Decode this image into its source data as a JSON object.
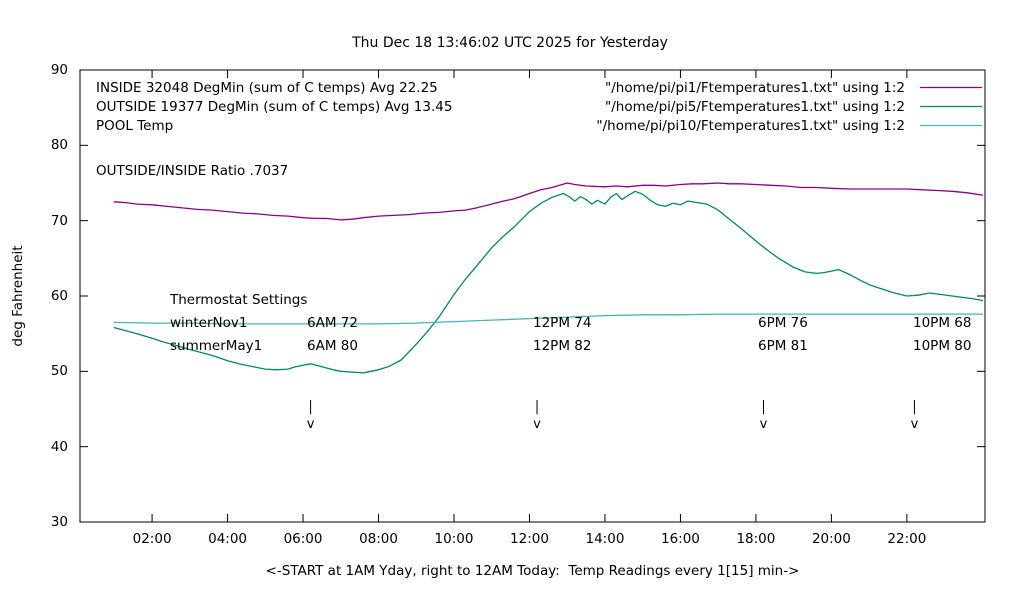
{
  "title": "Thu Dec 18 13:46:02 UTC 2025 for Yesterday",
  "ylabel": "deg Fahrenheit",
  "xlabel": "<-START at 1AM Yday, right to 12AM Today:  Temp Readings every 1[15] min->",
  "ratio_text": "OUTSIDE/INSIDE Ratio .7037",
  "legend": {
    "rows": [
      {
        "series": "INSIDE",
        "label": "INSIDE 32048 DegMin (sum of C temps) Avg 22.25",
        "file": "\"/home/pi/pi1/Ftemperatures1.txt\" using 1:2",
        "color": "#8b008b"
      },
      {
        "series": "OUTSIDE",
        "label": "OUTSIDE 19377 DegMin (sum of C temps) Avg 13.45",
        "file": "\"/home/pi/pi5/Ftemperatures1.txt\" using 1:2",
        "color": "#008b62"
      },
      {
        "series": "POOL",
        "label": "POOL Temp",
        "file": "\"/home/pi/pi10/Ftemperatures1.txt\" using 1:2",
        "color": "#45b4b8"
      }
    ]
  },
  "thermostat": {
    "heading": "Thermostat Settings",
    "rows": [
      {
        "label": "winterNov1",
        "cells": [
          "6AM 72",
          "12PM 74",
          "6PM 76",
          "10PM 68"
        ]
      },
      {
        "label": "summerMay1",
        "cells": [
          "6AM 80",
          "12PM 82",
          "6PM 81",
          "10PM 80"
        ]
      }
    ]
  },
  "chart_data": {
    "type": "line",
    "title": "Thu Dec 18 13:46:02 UTC 2025 for Yesterday",
    "xlabel": "<-START at 1AM Yday, right to 12AM Today:  Temp Readings every 1[15] min->",
    "ylabel": "deg Fahrenheit",
    "ylim": [
      30,
      90
    ],
    "x_domain_hours": [
      0.09,
      24.07
    ],
    "grid": false,
    "legend_position": "top-left-inside",
    "yticks": [
      30,
      40,
      50,
      60,
      70,
      80,
      90
    ],
    "xticks": [
      {
        "t": 2,
        "label": "02:00"
      },
      {
        "t": 4,
        "label": "04:00"
      },
      {
        "t": 6,
        "label": "06:00"
      },
      {
        "t": 8,
        "label": "08:00"
      },
      {
        "t": 10,
        "label": "10:00"
      },
      {
        "t": 12,
        "label": "12:00"
      },
      {
        "t": 14,
        "label": "14:00"
      },
      {
        "t": 16,
        "label": "16:00"
      },
      {
        "t": 18,
        "label": "18:00"
      },
      {
        "t": 20,
        "label": "20:00"
      },
      {
        "t": 22,
        "label": "22:00"
      }
    ],
    "markers": {
      "glyph": "v",
      "times_hours": [
        6.2,
        12.2,
        18.2,
        22.2
      ],
      "bar_top_f": 46.2,
      "bar_bottom_f": 44.3,
      "note": "thermostat setpoint change times"
    },
    "series": [
      {
        "name": "INSIDE",
        "color": "#8b008b",
        "points": [
          [
            1,
            72.5
          ],
          [
            1.3,
            72.4
          ],
          [
            1.6,
            72.2
          ],
          [
            2,
            72.1
          ],
          [
            2.4,
            71.9
          ],
          [
            2.8,
            71.7
          ],
          [
            3.2,
            71.5
          ],
          [
            3.6,
            71.4
          ],
          [
            4,
            71.2
          ],
          [
            4.4,
            71.0
          ],
          [
            4.8,
            70.9
          ],
          [
            5.2,
            70.7
          ],
          [
            5.6,
            70.6
          ],
          [
            6,
            70.4
          ],
          [
            6.3,
            70.3
          ],
          [
            6.6,
            70.3
          ],
          [
            7,
            70.1
          ],
          [
            7.3,
            70.2
          ],
          [
            7.6,
            70.4
          ],
          [
            8,
            70.6
          ],
          [
            8.4,
            70.7
          ],
          [
            8.8,
            70.8
          ],
          [
            9.2,
            71.0
          ],
          [
            9.6,
            71.1
          ],
          [
            10,
            71.3
          ],
          [
            10.3,
            71.4
          ],
          [
            10.6,
            71.7
          ],
          [
            11,
            72.2
          ],
          [
            11.3,
            72.6
          ],
          [
            11.6,
            72.9
          ],
          [
            12,
            73.6
          ],
          [
            12.3,
            74.1
          ],
          [
            12.6,
            74.4
          ],
          [
            13,
            75.0
          ],
          [
            13.2,
            74.8
          ],
          [
            13.5,
            74.6
          ],
          [
            14,
            74.5
          ],
          [
            14.3,
            74.6
          ],
          [
            14.6,
            74.5
          ],
          [
            15,
            74.7
          ],
          [
            15.3,
            74.7
          ],
          [
            15.6,
            74.6
          ],
          [
            16,
            74.8
          ],
          [
            16.3,
            74.9
          ],
          [
            16.6,
            74.9
          ],
          [
            17,
            75.0
          ],
          [
            17.3,
            74.9
          ],
          [
            17.6,
            74.9
          ],
          [
            18,
            74.8
          ],
          [
            18.4,
            74.7
          ],
          [
            18.8,
            74.6
          ],
          [
            19.2,
            74.4
          ],
          [
            19.6,
            74.4
          ],
          [
            20,
            74.3
          ],
          [
            20.5,
            74.2
          ],
          [
            21,
            74.2
          ],
          [
            21.5,
            74.2
          ],
          [
            22,
            74.2
          ],
          [
            22.4,
            74.1
          ],
          [
            22.8,
            74.0
          ],
          [
            23.2,
            73.9
          ],
          [
            23.6,
            73.7
          ],
          [
            24,
            73.4
          ]
        ]
      },
      {
        "name": "OUTSIDE",
        "color": "#008b62",
        "points": [
          [
            1,
            55.8
          ],
          [
            1.3,
            55.4
          ],
          [
            1.6,
            55.0
          ],
          [
            2,
            54.4
          ],
          [
            2.3,
            53.9
          ],
          [
            2.6,
            53.5
          ],
          [
            3,
            52.9
          ],
          [
            3.3,
            52.5
          ],
          [
            3.6,
            52.1
          ],
          [
            4,
            51.4
          ],
          [
            4.3,
            51.0
          ],
          [
            4.6,
            50.7
          ],
          [
            5,
            50.3
          ],
          [
            5.3,
            50.2
          ],
          [
            5.6,
            50.3
          ],
          [
            5.8,
            50.6
          ],
          [
            6,
            50.8
          ],
          [
            6.2,
            51.0
          ],
          [
            6.5,
            50.6
          ],
          [
            6.8,
            50.2
          ],
          [
            7,
            50.0
          ],
          [
            7.3,
            49.9
          ],
          [
            7.6,
            49.8
          ],
          [
            8,
            50.2
          ],
          [
            8.3,
            50.7
          ],
          [
            8.6,
            51.5
          ],
          [
            9,
            53.6
          ],
          [
            9.3,
            55.3
          ],
          [
            9.6,
            57.2
          ],
          [
            10,
            60.2
          ],
          [
            10.3,
            62.2
          ],
          [
            10.6,
            64.0
          ],
          [
            11,
            66.4
          ],
          [
            11.3,
            67.9
          ],
          [
            11.6,
            69.2
          ],
          [
            12,
            71.2
          ],
          [
            12.3,
            72.3
          ],
          [
            12.6,
            73.1
          ],
          [
            12.9,
            73.6
          ],
          [
            13.05,
            73.2
          ],
          [
            13.2,
            72.6
          ],
          [
            13.35,
            73.2
          ],
          [
            13.5,
            72.8
          ],
          [
            13.65,
            72.2
          ],
          [
            13.8,
            72.7
          ],
          [
            14,
            72.2
          ],
          [
            14.15,
            73.1
          ],
          [
            14.3,
            73.6
          ],
          [
            14.45,
            72.8
          ],
          [
            14.6,
            73.3
          ],
          [
            14.8,
            73.9
          ],
          [
            15,
            73.5
          ],
          [
            15.2,
            72.7
          ],
          [
            15.4,
            72.1
          ],
          [
            15.6,
            71.9
          ],
          [
            15.8,
            72.3
          ],
          [
            16,
            72.1
          ],
          [
            16.2,
            72.6
          ],
          [
            16.45,
            72.4
          ],
          [
            16.7,
            72.2
          ],
          [
            17,
            71.4
          ],
          [
            17.3,
            70.2
          ],
          [
            17.6,
            69.0
          ],
          [
            18,
            67.3
          ],
          [
            18.3,
            66.1
          ],
          [
            18.6,
            65.0
          ],
          [
            19,
            63.8
          ],
          [
            19.3,
            63.2
          ],
          [
            19.6,
            63.0
          ],
          [
            19.8,
            63.1
          ],
          [
            20,
            63.3
          ],
          [
            20.2,
            63.5
          ],
          [
            20.5,
            62.8
          ],
          [
            20.8,
            62.0
          ],
          [
            21,
            61.5
          ],
          [
            21.3,
            61.0
          ],
          [
            21.6,
            60.5
          ],
          [
            22,
            60.0
          ],
          [
            22.3,
            60.1
          ],
          [
            22.6,
            60.4
          ],
          [
            22.9,
            60.2
          ],
          [
            23.2,
            60.0
          ],
          [
            23.5,
            59.8
          ],
          [
            23.8,
            59.6
          ],
          [
            24,
            59.4
          ]
        ]
      },
      {
        "name": "POOL",
        "color": "#45b4b8",
        "points": [
          [
            1,
            56.5
          ],
          [
            2,
            56.4
          ],
          [
            3,
            56.4
          ],
          [
            4,
            56.3
          ],
          [
            5,
            56.3
          ],
          [
            6,
            56.3
          ],
          [
            7,
            56.3
          ],
          [
            8,
            56.3
          ],
          [
            9,
            56.4
          ],
          [
            10,
            56.6
          ],
          [
            11,
            56.8
          ],
          [
            12,
            57.0
          ],
          [
            13,
            57.2
          ],
          [
            14,
            57.4
          ],
          [
            15,
            57.5
          ],
          [
            16,
            57.5
          ],
          [
            17,
            57.6
          ],
          [
            18,
            57.6
          ],
          [
            19,
            57.6
          ],
          [
            20,
            57.6
          ],
          [
            21,
            57.6
          ],
          [
            22,
            57.6
          ],
          [
            23,
            57.6
          ],
          [
            24,
            57.6
          ]
        ]
      }
    ]
  }
}
